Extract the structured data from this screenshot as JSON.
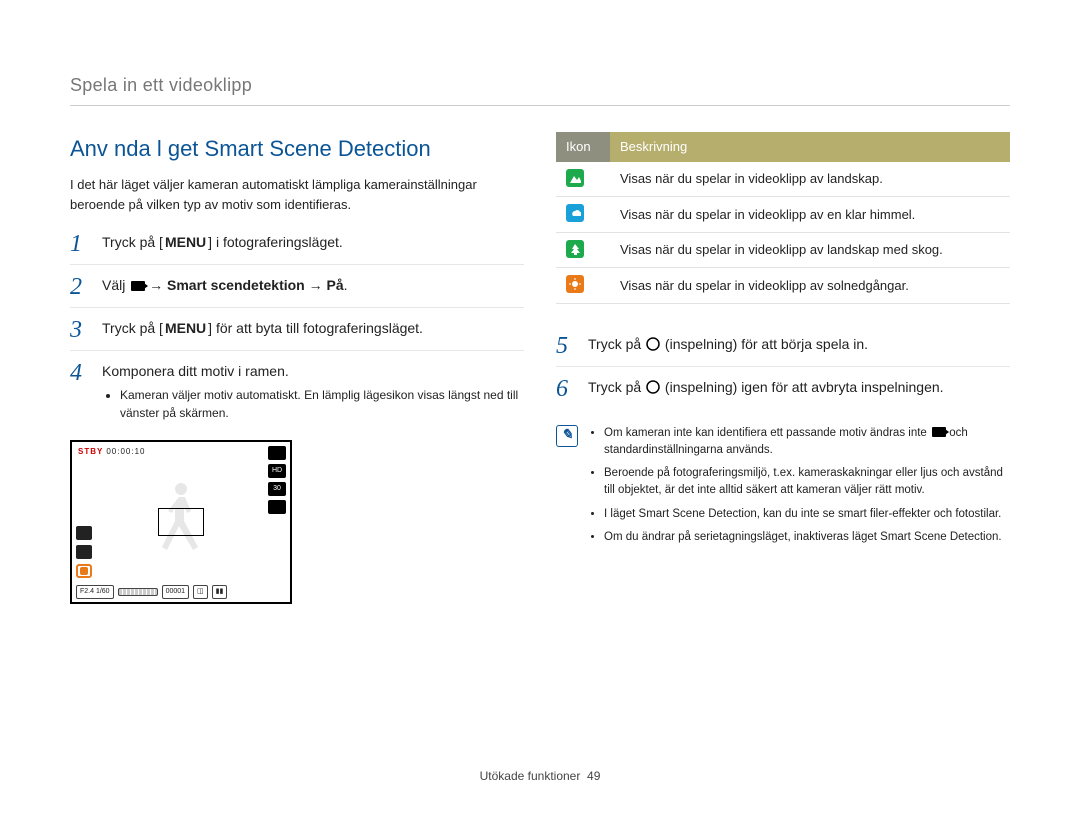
{
  "breadcrumb": "Spela in ett videoklipp",
  "title": "Anv nda l get Smart Scene Detection",
  "intro": "I det här läget väljer kameran automatiskt lämpliga kamerainställningar beroende på vilken typ av motiv som identifieras.",
  "steps_left": [
    {
      "n": "1",
      "pre": "Tryck på [",
      "key": "MENU",
      "post": "] i fotograferingsläget."
    },
    {
      "n": "2",
      "pre": "Välj ",
      "bold": " → Smart scendetektion → På",
      "post": ".",
      "has_video_icon": true
    },
    {
      "n": "3",
      "pre": "Tryck på [",
      "key": "MENU",
      "post": "] för att byta till fotograferingsläget."
    },
    {
      "n": "4",
      "pre": "Komponera ditt motiv i ramen.",
      "sub": "Kameran väljer motiv automatiskt. En lämplig lägesikon visas längst ned till vänster på skärmen."
    }
  ],
  "preview": {
    "stby_label": "STBY",
    "stby_time": "00:00:10",
    "right_icons": [
      "",
      "HD",
      "30",
      ""
    ],
    "bottom_fstop": "F2.4 1/60",
    "bottom_count": "00001"
  },
  "table": {
    "head_icon": "Ikon",
    "head_desc": "Beskrivning",
    "rows": [
      {
        "color": "#1caa4d",
        "shape": "mountain",
        "text": "Visas när du spelar in videoklipp av landskap."
      },
      {
        "color": "#1aa0d8",
        "shape": "cloud",
        "text": "Visas när du spelar in videoklipp av en klar himmel."
      },
      {
        "color": "#1caa4d",
        "shape": "tree",
        "text": "Visas när du spelar in videoklipp av landskap med skog."
      },
      {
        "color": "#e87a1a",
        "shape": "sun",
        "text": "Visas när du spelar in videoklipp av solnedgångar."
      }
    ]
  },
  "steps_right": [
    {
      "n": "5",
      "text_pre": "Tryck på ",
      "text_post": " (inspelning) för att börja spela in."
    },
    {
      "n": "6",
      "text_pre": "Tryck på ",
      "text_post": " (inspelning) igen för att avbryta inspelningen."
    }
  ],
  "notes": [
    "Om kameran inte kan identifiera ett passande motiv ändras inte      och standardinställningarna används.",
    "Beroende på fotograferingsmiljö, t.ex. kameraskakningar eller ljus och avstånd till objektet, är det inte alltid säkert att kameran väljer rätt motiv.",
    "I läget Smart Scene Detection, kan du inte se smart filer-effekter och fotostilar.",
    "Om du ändrar på serietagningsläget, inaktiveras läget Smart Scene Detection."
  ],
  "footer": {
    "section": "Utökade funktioner",
    "page": "49"
  }
}
